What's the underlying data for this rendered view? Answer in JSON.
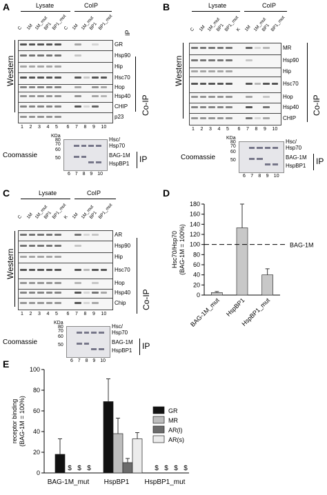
{
  "panels": {
    "A": {
      "letter": "A"
    },
    "B": {
      "letter": "B"
    },
    "C": {
      "letter": "C"
    },
    "D": {
      "letter": "D"
    },
    "E": {
      "letter": "E"
    }
  },
  "common": {
    "lysate": "Lysate",
    "coip": "CoIP",
    "western": "Western",
    "coip_vertical": "Co-IP",
    "coomassie": "Coomassie",
    "ip": "IP",
    "kda": "KDa",
    "lanes_1_5": [
      "1",
      "2",
      "3",
      "4",
      "5"
    ],
    "lanes_6_10": [
      "6",
      "7",
      "8",
      "9",
      "10"
    ],
    "coom_lanes": [
      "6",
      "7",
      "8",
      "9",
      "10"
    ],
    "kda_marks": [
      "80",
      "70",
      "60",
      "50"
    ],
    "hsc_hsp70": [
      "Hsc/",
      "Hsp70"
    ],
    "bag1m": "BAG-1M",
    "hspbp1": "HspBP1"
  },
  "panelA": {
    "lane_labels": [
      "C",
      "1M",
      "1M_mut",
      "BP1",
      "BP1_mut",
      "C",
      "1M",
      "1M_mut",
      "BP1",
      "BP1_mut"
    ],
    "bands": [
      "GR",
      "Hsp90",
      "Hip",
      "Hsc70",
      "Hop",
      "Hsp40",
      "CHIP",
      "p23"
    ]
  },
  "panelB": {
    "lane_labels": [
      "C",
      "1M",
      "1M_mut",
      "BP1",
      "BP1_mut",
      "K",
      "1M",
      "1M_mut",
      "BP1",
      "BP1_mut"
    ],
    "bands": [
      "MR",
      "Hsp90",
      "Hip",
      "Hsc70",
      "Hop",
      "Hsp40",
      "CHIP"
    ]
  },
  "panelC": {
    "lane_labels": [
      "C",
      "1M",
      "1M_mut",
      "BP1",
      "BP1_mut",
      "K",
      "1M",
      "1M_mut",
      "BP1",
      "BP1_mut"
    ],
    "bands": [
      "AR",
      "Hsp90",
      "Hip",
      "Hsc70",
      "Hop",
      "Hsp40",
      "Chip"
    ]
  },
  "chart_data": [
    {
      "type": "bar",
      "panel": "D",
      "categories": [
        "BAG-1M_mut",
        "HspBP1",
        "HspBP1_mut"
      ],
      "values": [
        5,
        133,
        40
      ],
      "errors": [
        2,
        47,
        12
      ],
      "ylabel": "Hsc70/Hsp70 (BAG-1M = 100%)",
      "ylabel_lines": [
        "Hsc70/Hsp70",
        "(BAG-1M = 100%)"
      ],
      "ylim": [
        0,
        180
      ],
      "yticks": [
        0,
        20,
        40,
        60,
        80,
        100,
        120,
        140,
        160,
        180
      ],
      "reference_line": {
        "value": 100,
        "label": "BAG-1M"
      }
    },
    {
      "type": "bar",
      "panel": "E",
      "categories": [
        "BAG-1M_mut",
        "HspBP1",
        "HspBP1_mut"
      ],
      "ylabel": "receptor binding (BAG-1M = 100%)",
      "ylabel_lines": [
        "receptor binding",
        "(BAG-1M = 100%)"
      ],
      "ylim": [
        0,
        100
      ],
      "yticks": [
        0,
        20,
        40,
        60,
        80,
        100
      ],
      "marker": "$",
      "legend_position": "right",
      "series": [
        {
          "name": "GR",
          "color": "#111111",
          "values": [
            18,
            69,
            null
          ],
          "errors": [
            15,
            22,
            null
          ]
        },
        {
          "name": "MR",
          "color": "#bdbdbd",
          "values": [
            null,
            38,
            null
          ],
          "errors": [
            null,
            15,
            null
          ]
        },
        {
          "name": "AR(l)",
          "color": "#6b6b6b",
          "values": [
            null,
            10,
            null
          ],
          "errors": [
            null,
            4,
            null
          ]
        },
        {
          "name": "AR(s)",
          "color": "#ececec",
          "values": [
            null,
            33,
            null
          ],
          "errors": [
            null,
            6,
            null
          ]
        }
      ]
    }
  ]
}
